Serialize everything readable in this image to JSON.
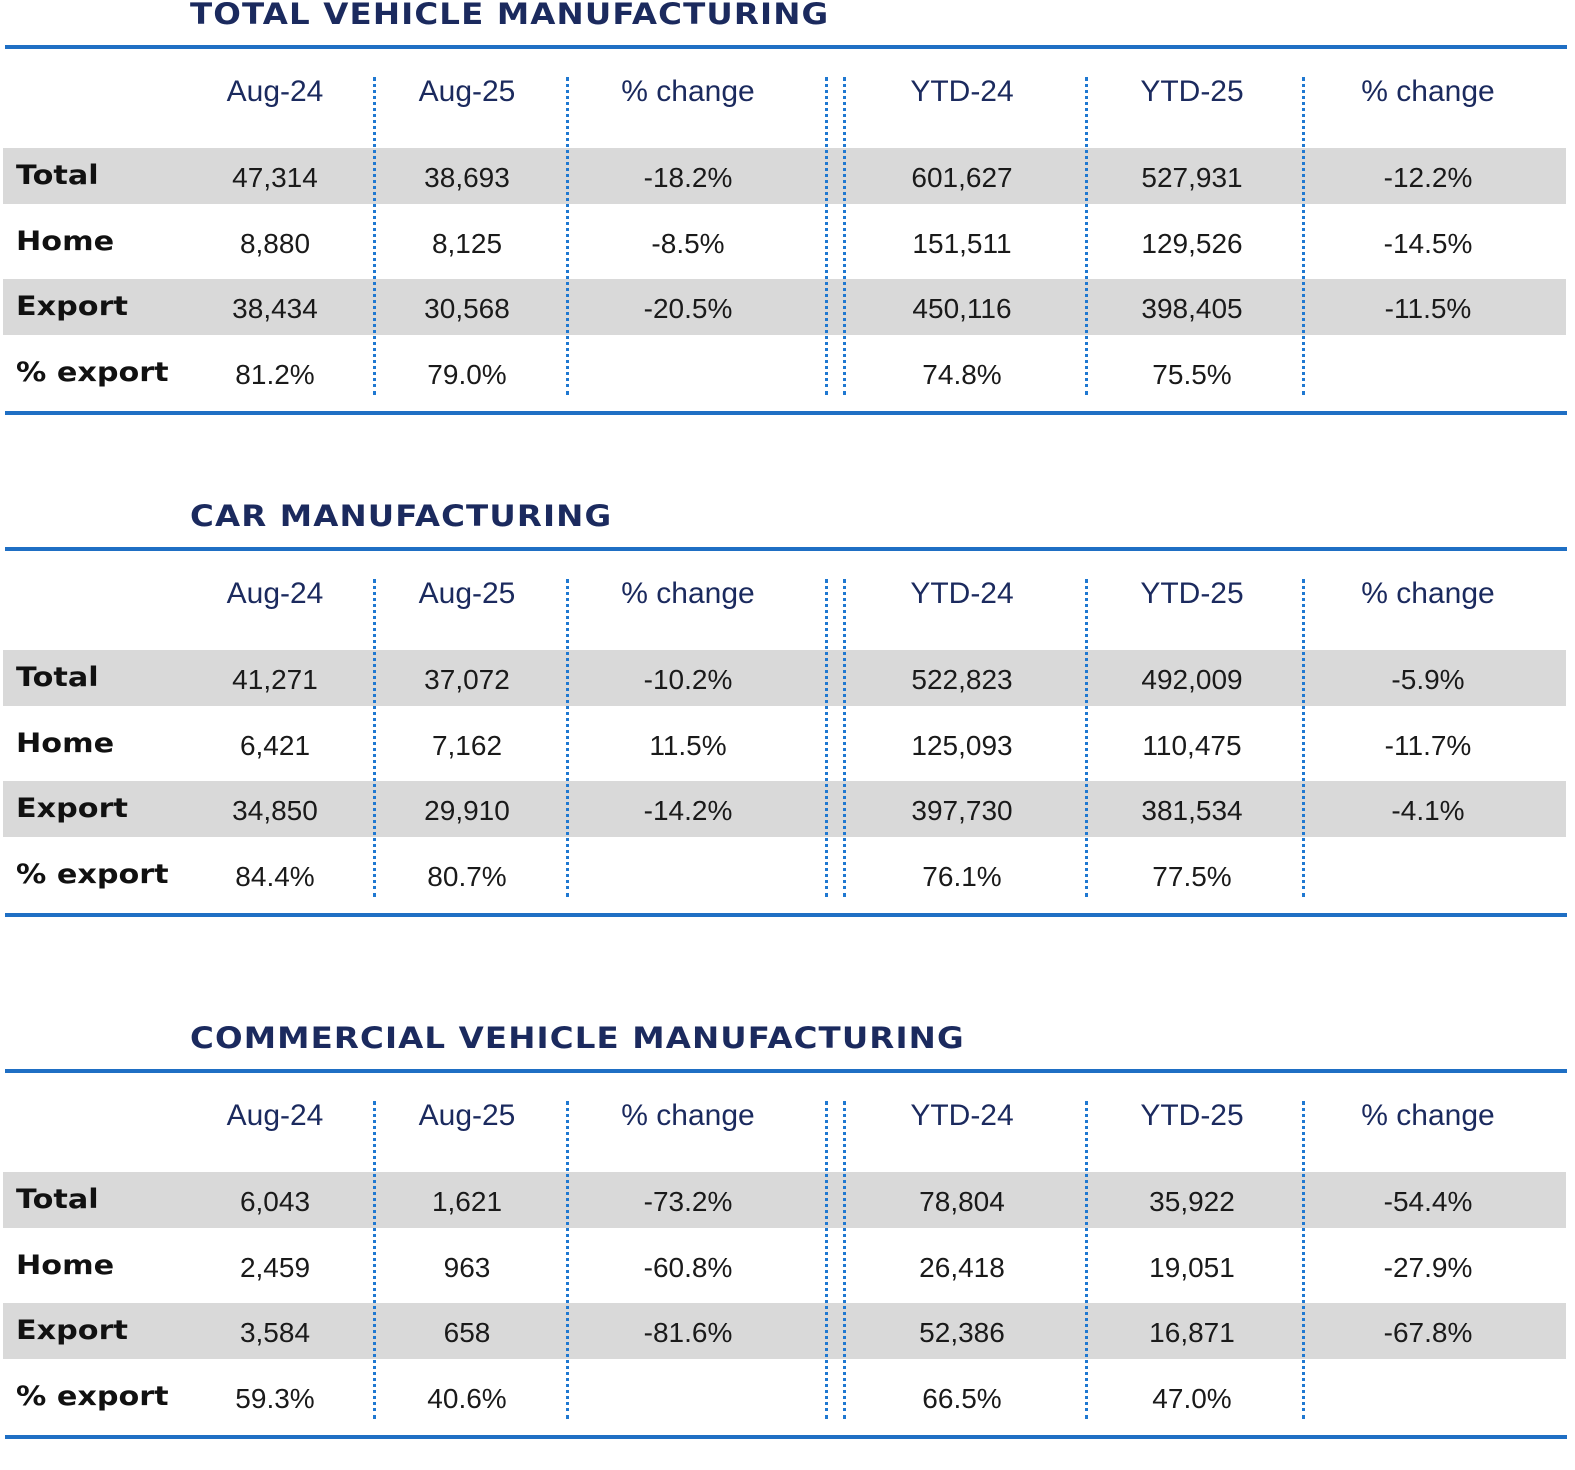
{
  "colors": {
    "title": "#1b2a5e",
    "rule": "#1f6fc4",
    "stripe": "#d9d9d9",
    "divider": "#1f78d1"
  },
  "columns": [
    "Aug-24",
    "Aug-25",
    "% change",
    "YTD-24",
    "YTD-25",
    "% change"
  ],
  "sections": [
    {
      "title": "TOTAL VEHICLE MANUFACTURING",
      "rows": [
        {
          "label": "Total",
          "values": [
            "47,314",
            "38,693",
            "-18.2%",
            "601,627",
            "527,931",
            "-12.2%"
          ]
        },
        {
          "label": "Home",
          "values": [
            "8,880",
            "8,125",
            "-8.5%",
            "151,511",
            "129,526",
            "-14.5%"
          ]
        },
        {
          "label": "Export",
          "values": [
            "38,434",
            "30,568",
            "-20.5%",
            "450,116",
            "398,405",
            "-11.5%"
          ]
        },
        {
          "label": "% export",
          "values": [
            "81.2%",
            "79.0%",
            "",
            "74.8%",
            "75.5%",
            ""
          ]
        }
      ]
    },
    {
      "title": "CAR MANUFACTURING",
      "rows": [
        {
          "label": "Total",
          "values": [
            "41,271",
            "37,072",
            "-10.2%",
            "522,823",
            "492,009",
            "-5.9%"
          ]
        },
        {
          "label": "Home",
          "values": [
            "6,421",
            "7,162",
            "11.5%",
            "125,093",
            "110,475",
            "-11.7%"
          ]
        },
        {
          "label": "Export",
          "values": [
            "34,850",
            "29,910",
            "-14.2%",
            "397,730",
            "381,534",
            "-4.1%"
          ]
        },
        {
          "label": "% export",
          "values": [
            "84.4%",
            "80.7%",
            "",
            "76.1%",
            "77.5%",
            ""
          ]
        }
      ]
    },
    {
      "title": "COMMERCIAL VEHICLE MANUFACTURING",
      "rows": [
        {
          "label": "Total",
          "values": [
            "6,043",
            "1,621",
            "-73.2%",
            "78,804",
            "35,922",
            "-54.4%"
          ]
        },
        {
          "label": "Home",
          "values": [
            "2,459",
            "963",
            "-60.8%",
            "26,418",
            "19,051",
            "-27.9%"
          ]
        },
        {
          "label": "Export",
          "values": [
            "3,584",
            "658",
            "-81.6%",
            "52,386",
            "16,871",
            "-67.8%"
          ]
        },
        {
          "label": "% export",
          "values": [
            "59.3%",
            "40.6%",
            "",
            "66.5%",
            "47.0%",
            ""
          ]
        }
      ]
    }
  ]
}
